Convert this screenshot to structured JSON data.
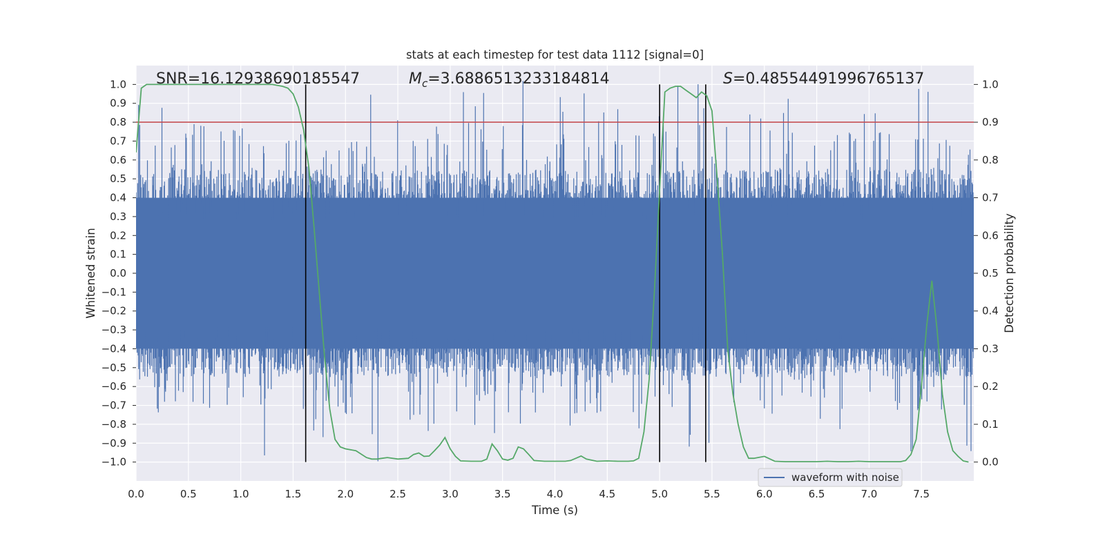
{
  "chart_data": {
    "type": "line",
    "title": "stats at each timestep for test data 1112 [signal=0]",
    "xlabel": "Time (s)",
    "ylabel": "Whitened strain",
    "ylabel_right": "Detection probability",
    "xlim": [
      0.0,
      8.0
    ],
    "ylim": [
      -1.1,
      1.1
    ],
    "ylim_right": [
      -0.05,
      1.05
    ],
    "xticks": [
      "0.0",
      "0.5",
      "1.0",
      "1.5",
      "2.0",
      "2.5",
      "3.0",
      "3.5",
      "4.0",
      "4.5",
      "5.0",
      "5.5",
      "6.0",
      "6.5",
      "7.0",
      "7.5"
    ],
    "yticks": [
      "1.0",
      "0.9",
      "0.8",
      "0.7",
      "0.6",
      "0.5",
      "0.4",
      "0.3",
      "0.2",
      "0.1",
      "0.0",
      "−0.1",
      "−0.2",
      "−0.3",
      "−0.4",
      "−0.5",
      "−0.6",
      "−0.7",
      "−0.8",
      "−0.9",
      "−1.0"
    ],
    "yticks_right": [
      "1.0",
      "0.9",
      "0.8",
      "0.7",
      "0.6",
      "0.5",
      "0.4",
      "0.3",
      "0.2",
      "0.1",
      "0.0"
    ],
    "grid": true,
    "annotations": {
      "snr": "SNR=16.12938690185547",
      "mc_symbol": "M",
      "mc_sub": "c",
      "mc_value": "=3.6886513233184814",
      "s_symbol": "S",
      "s_value": "=0.48554491996765137"
    },
    "legend": {
      "label": "waveform with noise",
      "placement": "lower-right"
    },
    "waveform": {
      "name": "waveform with noise",
      "color": "#4c72b0",
      "band_low": -0.4,
      "band_high": 0.4,
      "description_of_spikes": "dense noise spikes up to about 1.0 and down to about -1.0"
    },
    "threshold": {
      "value": 0.9,
      "axis": "right",
      "color": "#c44e52"
    },
    "vlines": [
      1.62,
      5.0,
      5.44
    ],
    "vline_range": [
      -1.0,
      1.0
    ],
    "probability": {
      "name": "Detection probability",
      "color": "#55a868",
      "x": [
        0.0,
        0.05,
        0.1,
        0.2,
        0.3,
        0.5,
        0.7,
        0.9,
        1.1,
        1.3,
        1.4,
        1.45,
        1.5,
        1.55,
        1.6,
        1.65,
        1.7,
        1.75,
        1.8,
        1.85,
        1.9,
        1.95,
        2.0,
        2.1,
        2.2,
        2.25,
        2.3,
        2.35,
        2.4,
        2.5,
        2.6,
        2.65,
        2.7,
        2.75,
        2.8,
        2.85,
        2.9,
        2.95,
        3.0,
        3.05,
        3.1,
        3.2,
        3.3,
        3.35,
        3.4,
        3.45,
        3.5,
        3.55,
        3.6,
        3.65,
        3.7,
        3.75,
        3.8,
        3.9,
        4.0,
        4.1,
        4.15,
        4.2,
        4.25,
        4.3,
        4.4,
        4.5,
        4.6,
        4.7,
        4.75,
        4.8,
        4.85,
        4.9,
        4.95,
        5.0,
        5.05,
        5.1,
        5.15,
        5.2,
        5.25,
        5.3,
        5.35,
        5.4,
        5.45,
        5.5,
        5.55,
        5.6,
        5.65,
        5.7,
        5.75,
        5.8,
        5.85,
        5.9,
        6.0,
        6.1,
        6.2,
        6.3,
        6.5,
        6.6,
        6.7,
        6.8,
        6.9,
        7.0,
        7.1,
        7.2,
        7.3,
        7.35,
        7.4,
        7.45,
        7.5,
        7.55,
        7.6,
        7.65,
        7.7,
        7.75,
        7.8,
        7.85,
        7.9,
        7.95
      ],
      "y": [
        0.82,
        0.99,
        1.0,
        1.0,
        1.0,
        1.0,
        1.0,
        1.0,
        1.0,
        1.0,
        0.995,
        0.99,
        0.975,
        0.94,
        0.88,
        0.78,
        0.62,
        0.45,
        0.28,
        0.14,
        0.06,
        0.04,
        0.035,
        0.03,
        0.012,
        0.008,
        0.008,
        0.01,
        0.012,
        0.008,
        0.01,
        0.02,
        0.024,
        0.015,
        0.016,
        0.03,
        0.045,
        0.065,
        0.035,
        0.015,
        0.003,
        0.002,
        0.002,
        0.008,
        0.048,
        0.03,
        0.008,
        0.005,
        0.01,
        0.04,
        0.035,
        0.02,
        0.004,
        0.002,
        0.002,
        0.002,
        0.004,
        0.01,
        0.016,
        0.008,
        0.002,
        0.003,
        0.002,
        0.002,
        0.003,
        0.01,
        0.08,
        0.22,
        0.45,
        0.72,
        0.98,
        0.99,
        0.995,
        0.995,
        0.985,
        0.975,
        0.965,
        0.98,
        0.97,
        0.93,
        0.75,
        0.55,
        0.3,
        0.18,
        0.1,
        0.04,
        0.01,
        0.01,
        0.015,
        0.002,
        0.001,
        0.001,
        0.001,
        0.002,
        0.001,
        0.001,
        0.002,
        0.001,
        0.001,
        0.001,
        0.001,
        0.004,
        0.02,
        0.06,
        0.2,
        0.36,
        0.48,
        0.35,
        0.18,
        0.08,
        0.03,
        0.015,
        0.003,
        0.0
      ]
    }
  }
}
